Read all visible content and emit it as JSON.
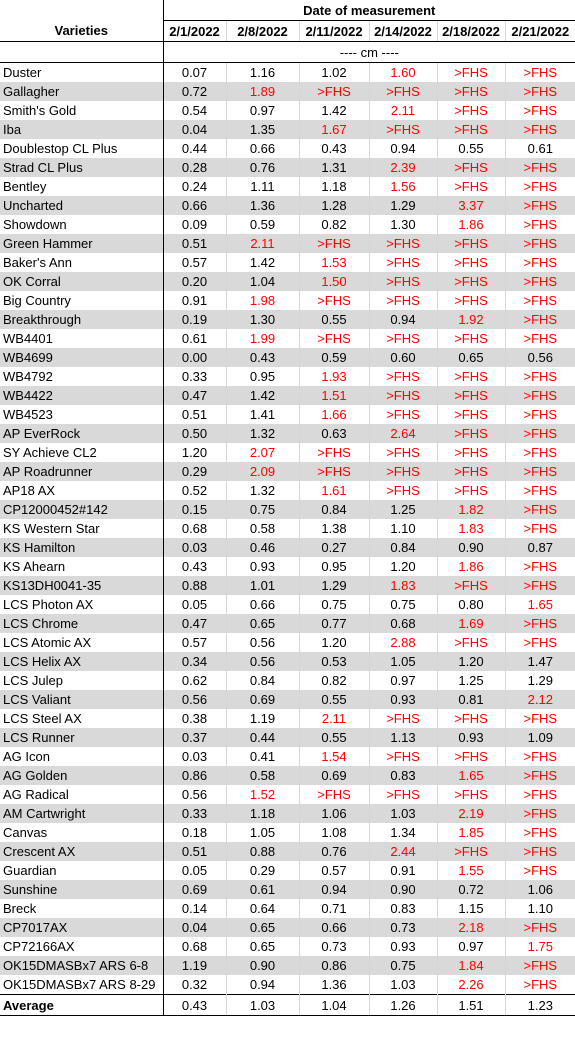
{
  "header": {
    "varieties_label": "Varieties",
    "group_label": "Date of measurement",
    "dates": [
      "2/1/2022",
      "2/8/2022",
      "2/11/2022",
      "2/14/2022",
      "2/18/2022",
      "2/21/2022"
    ],
    "unit_label": "---- cm ----"
  },
  "colors": {
    "highlight": "#ff0000",
    "shade": "#d9d9d9"
  },
  "rows": [
    {
      "name": "Duster",
      "values": [
        "0.07",
        "1.16",
        "1.02",
        "1.60",
        ">FHS",
        ">FHS"
      ],
      "red": [
        false,
        false,
        false,
        true,
        true,
        true
      ]
    },
    {
      "name": "Gallagher",
      "values": [
        "0.72",
        "1.89",
        ">FHS",
        ">FHS",
        ">FHS",
        ">FHS"
      ],
      "red": [
        false,
        true,
        true,
        true,
        true,
        true
      ]
    },
    {
      "name": "Smith's Gold",
      "values": [
        "0.54",
        "0.97",
        "1.42",
        "2.11",
        ">FHS",
        ">FHS"
      ],
      "red": [
        false,
        false,
        false,
        true,
        true,
        true
      ]
    },
    {
      "name": "Iba",
      "values": [
        "0.04",
        "1.35",
        "1.67",
        ">FHS",
        ">FHS",
        ">FHS"
      ],
      "red": [
        false,
        false,
        true,
        true,
        true,
        true
      ]
    },
    {
      "name": "Doublestop CL Plus",
      "values": [
        "0.44",
        "0.66",
        "0.43",
        "0.94",
        "0.55",
        "0.61"
      ],
      "red": [
        false,
        false,
        false,
        false,
        false,
        false
      ]
    },
    {
      "name": "Strad CL Plus",
      "values": [
        "0.28",
        "0.76",
        "1.31",
        "2.39",
        ">FHS",
        ">FHS"
      ],
      "red": [
        false,
        false,
        false,
        true,
        true,
        true
      ]
    },
    {
      "name": "Bentley",
      "values": [
        "0.24",
        "1.11",
        "1.18",
        "1.56",
        ">FHS",
        ">FHS"
      ],
      "red": [
        false,
        false,
        false,
        true,
        true,
        true
      ]
    },
    {
      "name": "Uncharted",
      "values": [
        "0.66",
        "1.36",
        "1.28",
        "1.29",
        "3.37",
        ">FHS"
      ],
      "red": [
        false,
        false,
        false,
        false,
        true,
        true
      ]
    },
    {
      "name": "Showdown",
      "values": [
        "0.09",
        "0.59",
        "0.82",
        "1.30",
        "1.86",
        ">FHS"
      ],
      "red": [
        false,
        false,
        false,
        false,
        true,
        true
      ]
    },
    {
      "name": "Green Hammer",
      "values": [
        "0.51",
        "2.11",
        ">FHS",
        ">FHS",
        ">FHS",
        ">FHS"
      ],
      "red": [
        false,
        true,
        true,
        true,
        true,
        true
      ]
    },
    {
      "name": "Baker's Ann",
      "values": [
        "0.57",
        "1.42",
        "1.53",
        ">FHS",
        ">FHS",
        ">FHS"
      ],
      "red": [
        false,
        false,
        true,
        true,
        true,
        true
      ]
    },
    {
      "name": "OK Corral",
      "values": [
        "0.20",
        "1.04",
        "1.50",
        ">FHS",
        ">FHS",
        ">FHS"
      ],
      "red": [
        false,
        false,
        true,
        true,
        true,
        true
      ]
    },
    {
      "name": "Big Country",
      "values": [
        "0.91",
        "1.98",
        ">FHS",
        ">FHS",
        ">FHS",
        ">FHS"
      ],
      "red": [
        false,
        true,
        true,
        true,
        true,
        true
      ]
    },
    {
      "name": "Breakthrough",
      "values": [
        "0.19",
        "1.30",
        "0.55",
        "0.94",
        "1.92",
        ">FHS"
      ],
      "red": [
        false,
        false,
        false,
        false,
        true,
        true
      ]
    },
    {
      "name": "WB4401",
      "values": [
        "0.61",
        "1.99",
        ">FHS",
        ">FHS",
        ">FHS",
        ">FHS"
      ],
      "red": [
        false,
        true,
        true,
        true,
        true,
        true
      ]
    },
    {
      "name": "WB4699",
      "values": [
        "0.00",
        "0.43",
        "0.59",
        "0.60",
        "0.65",
        "0.56"
      ],
      "red": [
        false,
        false,
        false,
        false,
        false,
        false
      ]
    },
    {
      "name": "WB4792",
      "values": [
        "0.33",
        "0.95",
        "1.93",
        ">FHS",
        ">FHS",
        ">FHS"
      ],
      "red": [
        false,
        false,
        true,
        true,
        true,
        true
      ]
    },
    {
      "name": "WB4422",
      "values": [
        "0.47",
        "1.42",
        "1.51",
        ">FHS",
        ">FHS",
        ">FHS"
      ],
      "red": [
        false,
        false,
        true,
        true,
        true,
        true
      ]
    },
    {
      "name": "WB4523",
      "values": [
        "0.51",
        "1.41",
        "1.66",
        ">FHS",
        ">FHS",
        ">FHS"
      ],
      "red": [
        false,
        false,
        true,
        true,
        true,
        true
      ]
    },
    {
      "name": "AP EverRock",
      "values": [
        "0.50",
        "1.32",
        "0.63",
        "2.64",
        ">FHS",
        ">FHS"
      ],
      "red": [
        false,
        false,
        false,
        true,
        true,
        true
      ]
    },
    {
      "name": "SY Achieve CL2",
      "values": [
        "1.20",
        "2.07",
        ">FHS",
        ">FHS",
        ">FHS",
        ">FHS"
      ],
      "red": [
        false,
        true,
        true,
        true,
        true,
        true
      ]
    },
    {
      "name": "AP Roadrunner",
      "values": [
        "0.29",
        "2.09",
        ">FHS",
        ">FHS",
        ">FHS",
        ">FHS"
      ],
      "red": [
        false,
        true,
        true,
        true,
        true,
        true
      ]
    },
    {
      "name": "AP18 AX",
      "values": [
        "0.52",
        "1.32",
        "1.61",
        ">FHS",
        ">FHS",
        ">FHS"
      ],
      "red": [
        false,
        false,
        true,
        true,
        true,
        true
      ]
    },
    {
      "name": "CP12000452#142",
      "values": [
        "0.15",
        "0.75",
        "0.84",
        "1.25",
        "1.82",
        ">FHS"
      ],
      "red": [
        false,
        false,
        false,
        false,
        true,
        true
      ]
    },
    {
      "name": "KS Western Star",
      "values": [
        "0.68",
        "0.58",
        "1.38",
        "1.10",
        "1.83",
        ">FHS"
      ],
      "red": [
        false,
        false,
        false,
        false,
        true,
        true
      ]
    },
    {
      "name": "KS Hamilton",
      "values": [
        "0.03",
        "0.46",
        "0.27",
        "0.84",
        "0.90",
        "0.87"
      ],
      "red": [
        false,
        false,
        false,
        false,
        false,
        false
      ]
    },
    {
      "name": "KS Ahearn",
      "values": [
        "0.43",
        "0.93",
        "0.95",
        "1.20",
        "1.86",
        ">FHS"
      ],
      "red": [
        false,
        false,
        false,
        false,
        true,
        true
      ]
    },
    {
      "name": "KS13DH0041-35",
      "values": [
        "0.88",
        "1.01",
        "1.29",
        "1.83",
        ">FHS",
        ">FHS"
      ],
      "red": [
        false,
        false,
        false,
        true,
        true,
        true
      ]
    },
    {
      "name": "LCS Photon AX",
      "values": [
        "0.05",
        "0.66",
        "0.75",
        "0.75",
        "0.80",
        "1.65"
      ],
      "red": [
        false,
        false,
        false,
        false,
        false,
        true
      ]
    },
    {
      "name": "LCS Chrome",
      "values": [
        "0.47",
        "0.65",
        "0.77",
        "0.68",
        "1.69",
        ">FHS"
      ],
      "red": [
        false,
        false,
        false,
        false,
        true,
        true
      ]
    },
    {
      "name": "LCS Atomic AX",
      "values": [
        "0.57",
        "0.56",
        "1.20",
        "2.88",
        ">FHS",
        ">FHS"
      ],
      "red": [
        false,
        false,
        false,
        true,
        true,
        true
      ]
    },
    {
      "name": "LCS Helix AX",
      "values": [
        "0.34",
        "0.56",
        "0.53",
        "1.05",
        "1.20",
        "1.47"
      ],
      "red": [
        false,
        false,
        false,
        false,
        false,
        false
      ]
    },
    {
      "name": "LCS Julep",
      "values": [
        "0.62",
        "0.84",
        "0.82",
        "0.97",
        "1.25",
        "1.29"
      ],
      "red": [
        false,
        false,
        false,
        false,
        false,
        false
      ]
    },
    {
      "name": "LCS Valiant",
      "values": [
        "0.56",
        "0.69",
        "0.55",
        "0.93",
        "0.81",
        "2.12"
      ],
      "red": [
        false,
        false,
        false,
        false,
        false,
        true
      ]
    },
    {
      "name": "LCS Steel AX",
      "values": [
        "0.38",
        "1.19",
        "2.11",
        ">FHS",
        ">FHS",
        ">FHS"
      ],
      "red": [
        false,
        false,
        true,
        true,
        true,
        true
      ]
    },
    {
      "name": "LCS Runner",
      "values": [
        "0.37",
        "0.44",
        "0.55",
        "1.13",
        "0.93",
        "1.09"
      ],
      "red": [
        false,
        false,
        false,
        false,
        false,
        false
      ]
    },
    {
      "name": "AG Icon",
      "values": [
        "0.03",
        "0.41",
        "1.54",
        ">FHS",
        ">FHS",
        ">FHS"
      ],
      "red": [
        false,
        false,
        true,
        true,
        true,
        true
      ]
    },
    {
      "name": "AG Golden",
      "values": [
        "0.86",
        "0.58",
        "0.69",
        "0.83",
        "1.65",
        ">FHS"
      ],
      "red": [
        false,
        false,
        false,
        false,
        true,
        true
      ]
    },
    {
      "name": "AG Radical",
      "values": [
        "0.56",
        "1.52",
        ">FHS",
        ">FHS",
        ">FHS",
        ">FHS"
      ],
      "red": [
        false,
        true,
        true,
        true,
        true,
        true
      ]
    },
    {
      "name": "AM Cartwright",
      "values": [
        "0.33",
        "1.18",
        "1.06",
        "1.03",
        "2.19",
        ">FHS"
      ],
      "red": [
        false,
        false,
        false,
        false,
        true,
        true
      ]
    },
    {
      "name": "Canvas",
      "values": [
        "0.18",
        "1.05",
        "1.08",
        "1.34",
        "1.85",
        ">FHS"
      ],
      "red": [
        false,
        false,
        false,
        false,
        true,
        true
      ]
    },
    {
      "name": "Crescent AX",
      "values": [
        "0.51",
        "0.88",
        "0.76",
        "2.44",
        ">FHS",
        ">FHS"
      ],
      "red": [
        false,
        false,
        false,
        true,
        true,
        true
      ]
    },
    {
      "name": "Guardian",
      "values": [
        "0.05",
        "0.29",
        "0.57",
        "0.91",
        "1.55",
        ">FHS"
      ],
      "red": [
        false,
        false,
        false,
        false,
        true,
        true
      ]
    },
    {
      "name": "Sunshine",
      "values": [
        "0.69",
        "0.61",
        "0.94",
        "0.90",
        "0.72",
        "1.06"
      ],
      "red": [
        false,
        false,
        false,
        false,
        false,
        false
      ]
    },
    {
      "name": "Breck",
      "values": [
        "0.14",
        "0.64",
        "0.71",
        "0.83",
        "1.15",
        "1.10"
      ],
      "red": [
        false,
        false,
        false,
        false,
        false,
        false
      ]
    },
    {
      "name": "CP7017AX",
      "values": [
        "0.04",
        "0.65",
        "0.66",
        "0.73",
        "2.18",
        ">FHS"
      ],
      "red": [
        false,
        false,
        false,
        false,
        true,
        true
      ]
    },
    {
      "name": "CP72166AX",
      "values": [
        "0.68",
        "0.65",
        "0.73",
        "0.93",
        "0.97",
        "1.75"
      ],
      "red": [
        false,
        false,
        false,
        false,
        false,
        true
      ]
    },
    {
      "name": "OK15DMASBx7 ARS 6-8",
      "values": [
        "1.19",
        "0.90",
        "0.86",
        "0.75",
        "1.84",
        ">FHS"
      ],
      "red": [
        false,
        false,
        false,
        false,
        true,
        true
      ]
    },
    {
      "name": "OK15DMASBx7 ARS 8-29",
      "values": [
        "0.32",
        "0.94",
        "1.36",
        "1.03",
        "2.26",
        ">FHS"
      ],
      "red": [
        false,
        false,
        false,
        false,
        true,
        true
      ]
    }
  ],
  "average": {
    "label": "Average",
    "values": [
      "0.43",
      "1.03",
      "1.04",
      "1.26",
      "1.51",
      "1.23"
    ]
  }
}
